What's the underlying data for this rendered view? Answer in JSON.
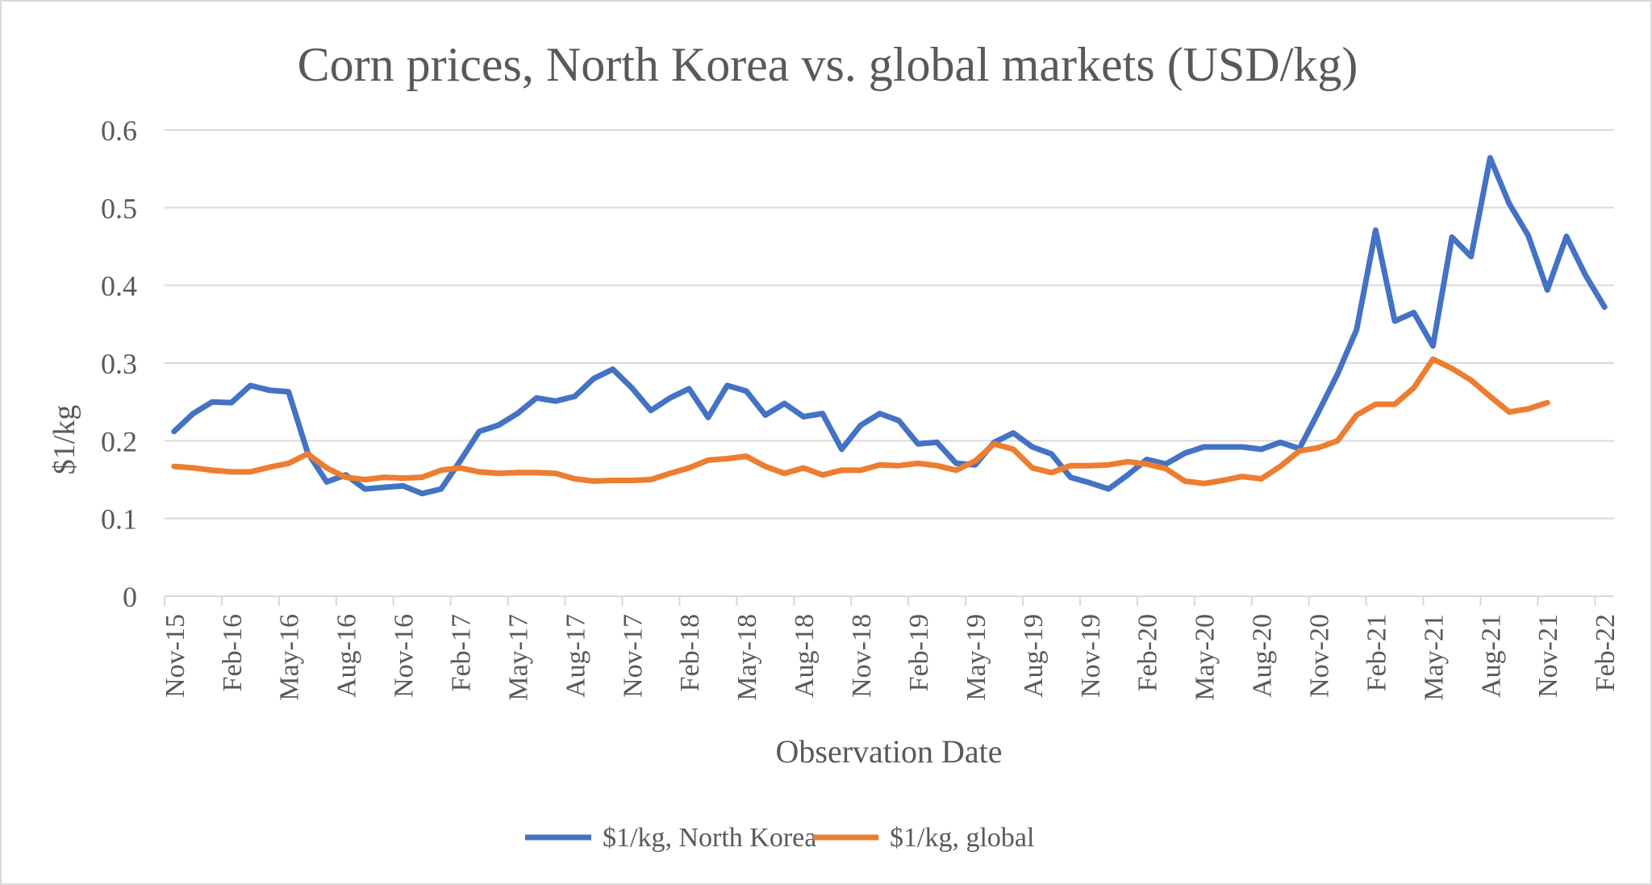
{
  "chart_data": {
    "type": "line",
    "title": "Corn prices, North Korea vs. global markets (USD/kg)",
    "xlabel": "Observation Date",
    "ylabel": "$1/kg",
    "ylim": [
      0,
      0.6
    ],
    "yticks": [
      "0",
      "0.1",
      "0.2",
      "0.3",
      "0.4",
      "0.5",
      "0.6"
    ],
    "grid": true,
    "legend": "bottom",
    "categories": [
      "Nov-15",
      "Dec-15",
      "Jan-16",
      "Feb-16",
      "Mar-16",
      "Apr-16",
      "May-16",
      "Jun-16",
      "Jul-16",
      "Aug-16",
      "Sep-16",
      "Oct-16",
      "Nov-16",
      "Dec-16",
      "Jan-17",
      "Feb-17",
      "Mar-17",
      "Apr-17",
      "May-17",
      "Jun-17",
      "Jul-17",
      "Aug-17",
      "Sep-17",
      "Oct-17",
      "Nov-17",
      "Dec-17",
      "Jan-18",
      "Feb-18",
      "Mar-18",
      "Apr-18",
      "May-18",
      "Jun-18",
      "Jul-18",
      "Aug-18",
      "Sep-18",
      "Oct-18",
      "Nov-18",
      "Dec-18",
      "Jan-19",
      "Feb-19",
      "Mar-19",
      "Apr-19",
      "May-19",
      "Jun-19",
      "Jul-19",
      "Aug-19",
      "Sep-19",
      "Oct-19",
      "Nov-19",
      "Dec-19",
      "Jan-20",
      "Feb-20",
      "Mar-20",
      "Apr-20",
      "May-20",
      "Jun-20",
      "Jul-20",
      "Aug-20",
      "Sep-20",
      "Oct-20",
      "Nov-20",
      "Dec-20",
      "Jan-21",
      "Feb-21",
      "Mar-21",
      "Apr-21",
      "May-21",
      "Jun-21",
      "Jul-21",
      "Aug-21",
      "Sep-21",
      "Oct-21",
      "Nov-21",
      "Dec-21",
      "Jan-22",
      "Feb-22"
    ],
    "tick_label_every": 3,
    "series": [
      {
        "name": "$1/kg, North Korea",
        "color": "#4472C4",
        "values": [
          0.212,
          0.235,
          0.25,
          0.249,
          0.271,
          0.265,
          0.263,
          0.185,
          0.147,
          0.156,
          0.138,
          0.14,
          0.142,
          0.132,
          0.138,
          0.174,
          0.212,
          0.22,
          0.235,
          0.255,
          0.251,
          0.257,
          0.28,
          0.292,
          0.268,
          0.239,
          0.255,
          0.267,
          0.23,
          0.271,
          0.264,
          0.233,
          0.248,
          0.231,
          0.235,
          0.189,
          0.22,
          0.235,
          0.226,
          0.196,
          0.198,
          0.171,
          0.169,
          0.198,
          0.21,
          0.192,
          0.183,
          0.153,
          0.146,
          0.138,
          0.156,
          0.176,
          0.17,
          0.184,
          0.192,
          0.192,
          0.192,
          0.189,
          0.198,
          0.19,
          0.237,
          0.286,
          0.343,
          0.471,
          0.354,
          0.365,
          0.322,
          0.462,
          0.437,
          0.564,
          0.505,
          0.464,
          0.394,
          0.463,
          0.413,
          0.372
        ]
      },
      {
        "name": "$1/kg, global",
        "color": "#ED7D31",
        "values": [
          0.167,
          0.165,
          0.162,
          0.16,
          0.16,
          0.166,
          0.171,
          0.183,
          0.165,
          0.153,
          0.15,
          0.153,
          0.152,
          0.153,
          0.162,
          0.165,
          0.16,
          0.158,
          0.159,
          0.159,
          0.158,
          0.151,
          0.148,
          0.149,
          0.149,
          0.15,
          0.158,
          0.165,
          0.175,
          0.177,
          0.18,
          0.167,
          0.158,
          0.165,
          0.156,
          0.162,
          0.162,
          0.169,
          0.168,
          0.171,
          0.168,
          0.162,
          0.174,
          0.196,
          0.189,
          0.165,
          0.159,
          0.168,
          0.168,
          0.169,
          0.173,
          0.17,
          0.164,
          0.148,
          0.145,
          0.149,
          0.154,
          0.151,
          0.167,
          0.187,
          0.191,
          0.2,
          0.233,
          0.247,
          0.247,
          0.268,
          0.305,
          0.293,
          0.278,
          0.257,
          0.237,
          0.241,
          0.249,
          null,
          null,
          null
        ]
      }
    ]
  }
}
